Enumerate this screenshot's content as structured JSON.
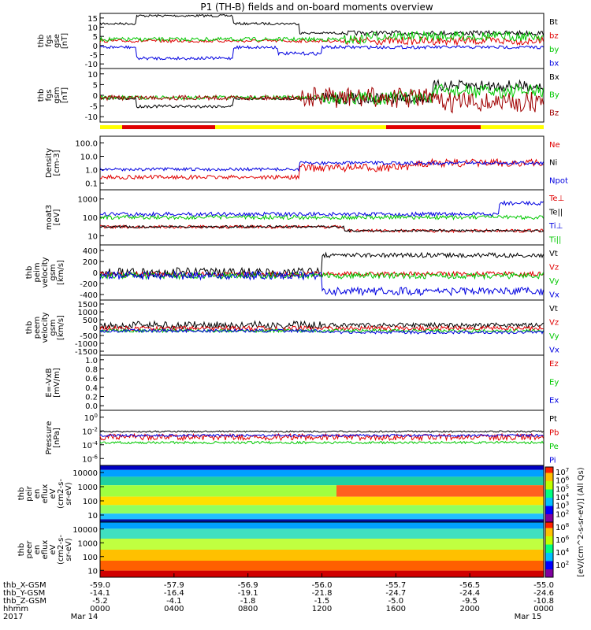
{
  "title": "P1 (TH-B) fields and on-board moments overview",
  "colors": {
    "black": "#000000",
    "red": "#e00000",
    "green": "#00c800",
    "blue": "#0000e0",
    "darkred": "#a00000",
    "yellow": "#ffff00"
  },
  "x_ticks": [
    "0000",
    "0400",
    "0800",
    "1200",
    "1600",
    "2000",
    "0000"
  ],
  "ephemeris": [
    {
      "label": "thb_X-GSM",
      "values": [
        "-59.0",
        "-57.9",
        "-56.9",
        "-56.0",
        "-55.7",
        "-56.5",
        "-55.0"
      ]
    },
    {
      "label": "thb_Y-GSM",
      "values": [
        "-14.1",
        "-16.4",
        "-19.1",
        "-21.8",
        "-24.7",
        "-24.4",
        "-24.6"
      ]
    },
    {
      "label": "thb_Z-GSM",
      "values": [
        "-5.2",
        "-4.1",
        "-1.8",
        "-1.5",
        "-5.0",
        "-9.5",
        "-10.8"
      ]
    },
    {
      "label": "hhmm",
      "values": [
        "0000",
        "0400",
        "0800",
        "1200",
        "1600",
        "2000",
        "0000"
      ]
    },
    {
      "label": "2017",
      "values": [
        "Mar 14",
        "",
        "",
        "",
        "",
        "",
        "Mar 15"
      ]
    }
  ],
  "panels": [
    {
      "ylabel": [
        "thb",
        "fgs",
        "gse",
        "[nT]"
      ],
      "ticks": [
        "15",
        "10",
        "5",
        "0",
        "-5",
        "-10"
      ],
      "legend": [
        {
          "t": "Bt",
          "c": "black"
        },
        {
          "t": "bz",
          "c": "red"
        },
        {
          "t": "by",
          "c": "green"
        },
        {
          "t": "bx",
          "c": "blue"
        }
      ]
    },
    {
      "ylabel": [
        "thb",
        "fgs",
        "gsm",
        "[nT]"
      ],
      "ticks": [
        "10",
        "5",
        "0",
        "-5",
        "-10"
      ],
      "legend": [
        {
          "t": "Bx",
          "c": "black"
        },
        {
          "t": "By",
          "c": "green"
        },
        {
          "t": "Bz",
          "c": "darkred"
        }
      ]
    },
    {
      "ylabel": [
        "Density",
        "[cm-3]"
      ],
      "ticks": [
        "100.0",
        "10.0",
        "1.0",
        "0.1"
      ],
      "legend": [
        {
          "t": "Ne",
          "c": "red"
        },
        {
          "t": "Ni",
          "c": "black"
        },
        {
          "t": "Npot",
          "c": "blue"
        }
      ]
    },
    {
      "ylabel": [
        "moat3",
        "[eV]"
      ],
      "ticks": [
        "1000",
        "100",
        "10"
      ],
      "legend": [
        {
          "t": "Te⊥",
          "c": "red"
        },
        {
          "t": "Te||",
          "c": "black"
        },
        {
          "t": "Ti⊥",
          "c": "blue"
        },
        {
          "t": "Ti||",
          "c": "green"
        }
      ]
    },
    {
      "ylabel": [
        "thb",
        "peim",
        "velocity",
        "gsm",
        "[km/s]"
      ],
      "ticks": [
        "400",
        "200",
        "0",
        "-200",
        "-400"
      ],
      "legend": [
        {
          "t": "Vt",
          "c": "black"
        },
        {
          "t": "Vz",
          "c": "red"
        },
        {
          "t": "Vy",
          "c": "green"
        },
        {
          "t": "Vx",
          "c": "blue"
        }
      ]
    },
    {
      "ylabel": [
        "thb",
        "peem",
        "velocity",
        "gsm",
        "[km/s]"
      ],
      "ticks": [
        "1500",
        "1000",
        "500",
        "0",
        "-500",
        "-1000",
        "-1500"
      ],
      "legend": [
        {
          "t": "Vt",
          "c": "black"
        },
        {
          "t": "Vz",
          "c": "red"
        },
        {
          "t": "Vy",
          "c": "green"
        },
        {
          "t": "Vx",
          "c": "blue"
        }
      ]
    },
    {
      "ylabel": [
        "E=-VxB",
        "[mV/m]"
      ],
      "ticks": [
        "1.0",
        "0.8",
        "0.6",
        "0.4",
        "0.2",
        "0.0"
      ],
      "legend": [
        {
          "t": "Ez",
          "c": "red"
        },
        {
          "t": "Ey",
          "c": "green"
        },
        {
          "t": "Ex",
          "c": "blue"
        }
      ]
    },
    {
      "ylabel": [
        "Pressure",
        "[nPa]"
      ],
      "ticks": [
        "10^0",
        "10^-2",
        "10^-4",
        "10^-6"
      ],
      "legend": [
        {
          "t": "Pt",
          "c": "black"
        },
        {
          "t": "Pb",
          "c": "red"
        },
        {
          "t": "Pe",
          "c": "green"
        },
        {
          "t": "Pi",
          "c": "blue"
        }
      ]
    },
    {
      "ylabel": [
        "thb",
        "peir",
        "en",
        "eflux",
        "eV",
        "(cm2-s-",
        "sr-eV)"
      ],
      "ticks": [
        "10000",
        "1000",
        "100",
        "10"
      ],
      "legend": []
    },
    {
      "ylabel": [
        "thb",
        "peer",
        "en",
        "eflux",
        "eV",
        "(cm2-s-",
        "sr-eV)"
      ],
      "ticks": [
        "10000",
        "1000",
        "100",
        "10"
      ],
      "legend": []
    }
  ],
  "colorbar_top": {
    "ticks": [
      "10^7",
      "10^6",
      "10^5",
      "10^4",
      "10^3",
      "10^2"
    ]
  },
  "colorbar_bottom": {
    "ticks": [
      "10^8",
      "10^6",
      "10^4",
      "10^2"
    ]
  },
  "colorbar_label": "[eV/(cm^2-s-sr-eV)] (All Qs)"
}
